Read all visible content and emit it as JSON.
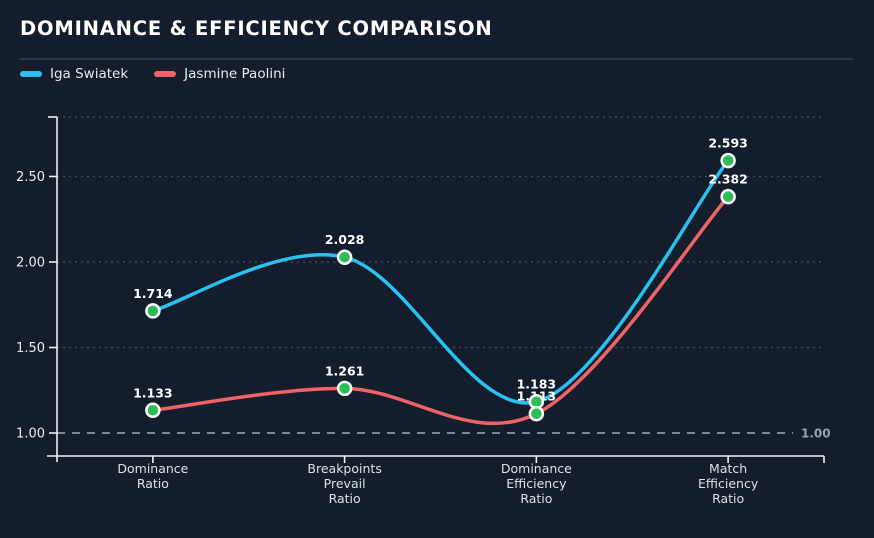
{
  "title": "DOMINANCE & EFFICIENCY COMPARISON",
  "legend": {
    "items": [
      {
        "label": "Iga Swiatek",
        "color": "#2ac0f0"
      },
      {
        "label": "Jasmine Paolini",
        "color": "#ef6367"
      }
    ]
  },
  "chart_data": {
    "type": "line",
    "title": "DOMINANCE & EFFICIENCY COMPARISON",
    "categories": [
      [
        "Dominance",
        "Ratio"
      ],
      [
        "Breakpoints",
        "Prevail",
        "Ratio"
      ],
      [
        "Dominance",
        "Efficiency",
        "Ratio"
      ],
      [
        "Match",
        "Efficiency",
        "Ratio"
      ]
    ],
    "series": [
      {
        "name": "Iga Swiatek",
        "color": "#2ac0f0",
        "values": [
          1.714,
          2.028,
          1.183,
          2.593
        ],
        "point_labels": [
          "1.714",
          "2.028",
          "1.183",
          "2.593"
        ]
      },
      {
        "name": "Jasmine Paolini",
        "color": "#ef6367",
        "values": [
          1.133,
          1.261,
          1.113,
          2.382
        ],
        "point_labels": [
          "1.133",
          "1.261",
          "1.113",
          "2.382"
        ]
      }
    ],
    "marker": {
      "fill": "#2dbd55",
      "stroke": "#ffffff"
    },
    "yticks": {
      "values": [
        1.0,
        1.5,
        2.0,
        2.5
      ],
      "labels": [
        "1.00",
        "1.50",
        "2.00",
        "2.50"
      ]
    },
    "ylim": [
      0.865,
      2.848
    ],
    "reference_line": {
      "value": 1.0,
      "label": "1.00"
    },
    "grid": true,
    "legend_position": "top-left",
    "colors": {
      "background": "#141d2c",
      "axis": "#edf0f5",
      "grid": "#3c4760",
      "reference": "#7d8798",
      "reference_label": "#99a2b1",
      "tick_label": "#e9edf3",
      "category_label": "#dde2ea",
      "value_label": "#ffffff"
    }
  }
}
